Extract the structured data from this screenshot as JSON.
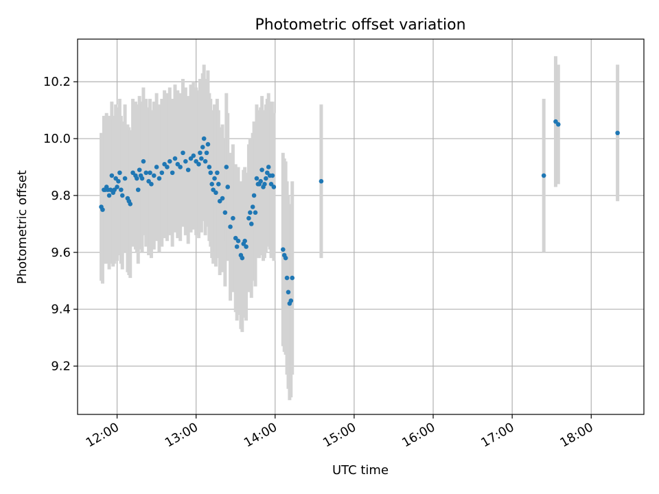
{
  "chart_data": {
    "type": "scatter",
    "title": "Photometric offset variation",
    "xlabel": "UTC time",
    "ylabel": "Photometric offset",
    "x_ticks": [
      "12:00",
      "13:00",
      "14:00",
      "15:00",
      "16:00",
      "17:00",
      "18:00"
    ],
    "y_ticks": [
      "9.2",
      "9.4",
      "9.6",
      "9.8",
      "10.0",
      "10.2"
    ],
    "xlim": [
      "11:30",
      "18:40"
    ],
    "ylim": [
      9.03,
      10.35
    ],
    "grid": true,
    "colors": {
      "point": "#1f77b4",
      "errorbar": "#d3d3d3",
      "grid": "#b0b0b0"
    },
    "series": [
      {
        "x": [
          "11:48",
          "11:49",
          "11:50",
          "11:51",
          "11:52",
          "11:53",
          "11:54",
          "11:55",
          "11:56",
          "11:57",
          "11:58",
          "11:59",
          "12:00",
          "12:01",
          "12:02",
          "12:03",
          "12:04",
          "12:06",
          "12:08",
          "12:09",
          "12:10",
          "12:12",
          "12:14",
          "12:15",
          "12:16",
          "12:17",
          "12:18",
          "12:19",
          "12:20",
          "12:22",
          "12:24",
          "12:25",
          "12:26",
          "12:28",
          "12:30",
          "12:32",
          "12:34",
          "12:36",
          "12:38",
          "12:40",
          "12:42",
          "12:44",
          "12:46",
          "12:48",
          "12:50",
          "12:52",
          "12:54",
          "12:56",
          "12:58",
          "13:00",
          "13:02",
          "13:03",
          "13:04",
          "13:05",
          "13:06",
          "13:07",
          "13:08",
          "13:09",
          "13:10",
          "13:11",
          "13:12",
          "13:13",
          "13:14",
          "13:15",
          "13:16",
          "13:17",
          "13:18",
          "13:20",
          "13:22",
          "13:23",
          "13:24",
          "13:26",
          "13:28",
          "13:30",
          "13:31",
          "13:32",
          "13:34",
          "13:35",
          "13:36",
          "13:37",
          "13:38",
          "13:40",
          "13:41",
          "13:42",
          "13:43",
          "13:44",
          "13:45",
          "13:46",
          "13:47",
          "13:48",
          "13:49",
          "13:50",
          "13:51",
          "13:52",
          "13:53",
          "13:54",
          "13:55",
          "13:56",
          "13:57",
          "13:58",
          "13:59",
          "14:06",
          "14:07",
          "14:08",
          "14:09",
          "14:10",
          "14:11",
          "14:12",
          "14:13",
          "14:35",
          "17:24",
          "17:33",
          "17:35",
          "18:20"
        ],
        "y": [
          9.76,
          9.75,
          9.82,
          9.82,
          9.83,
          9.82,
          9.8,
          9.82,
          9.87,
          9.81,
          9.82,
          9.86,
          9.83,
          9.85,
          9.88,
          9.82,
          9.8,
          9.86,
          9.79,
          9.78,
          9.77,
          9.88,
          9.87,
          9.86,
          9.82,
          9.89,
          9.87,
          9.86,
          9.92,
          9.88,
          9.85,
          9.88,
          9.84,
          9.87,
          9.9,
          9.86,
          9.88,
          9.91,
          9.9,
          9.92,
          9.88,
          9.93,
          9.91,
          9.9,
          9.95,
          9.92,
          9.89,
          9.93,
          9.94,
          9.92,
          9.91,
          9.95,
          9.93,
          9.97,
          10.0,
          9.92,
          9.95,
          9.98,
          9.9,
          9.88,
          9.84,
          9.82,
          9.86,
          9.81,
          9.88,
          9.84,
          9.78,
          9.79,
          9.74,
          9.9,
          9.83,
          9.69,
          9.72,
          9.65,
          9.62,
          9.64,
          9.59,
          9.58,
          9.63,
          9.64,
          9.62,
          9.72,
          9.74,
          9.7,
          9.76,
          9.8,
          9.74,
          9.86,
          9.84,
          9.84,
          9.85,
          9.89,
          9.83,
          9.84,
          9.86,
          9.88,
          9.9,
          9.87,
          9.84,
          9.87,
          9.83,
          9.61,
          9.59,
          9.58,
          9.51,
          9.46,
          9.42,
          9.43,
          9.51,
          9.85,
          9.87,
          10.06,
          10.05,
          10.02
        ],
        "yerr": [
          0.26,
          0.26,
          0.26,
          0.26,
          0.26,
          0.26,
          0.26,
          0.26,
          0.26,
          0.26,
          0.26,
          0.26,
          0.26,
          0.26,
          0.26,
          0.26,
          0.26,
          0.26,
          0.26,
          0.26,
          0.26,
          0.26,
          0.26,
          0.26,
          0.26,
          0.26,
          0.26,
          0.26,
          0.26,
          0.26,
          0.26,
          0.26,
          0.26,
          0.26,
          0.26,
          0.26,
          0.26,
          0.26,
          0.26,
          0.26,
          0.26,
          0.26,
          0.26,
          0.26,
          0.26,
          0.26,
          0.26,
          0.26,
          0.26,
          0.26,
          0.26,
          0.26,
          0.26,
          0.26,
          0.26,
          0.26,
          0.26,
          0.26,
          0.26,
          0.26,
          0.26,
          0.26,
          0.26,
          0.26,
          0.26,
          0.26,
          0.26,
          0.26,
          0.26,
          0.26,
          0.26,
          0.26,
          0.26,
          0.26,
          0.26,
          0.26,
          0.26,
          0.26,
          0.26,
          0.26,
          0.26,
          0.26,
          0.26,
          0.26,
          0.26,
          0.26,
          0.26,
          0.26,
          0.26,
          0.26,
          0.26,
          0.26,
          0.26,
          0.26,
          0.26,
          0.26,
          0.26,
          0.26,
          0.26,
          0.26,
          0.26,
          0.34,
          0.34,
          0.34,
          0.34,
          0.34,
          0.34,
          0.34,
          0.34,
          0.27,
          0.27,
          0.23,
          0.21,
          0.24
        ]
      }
    ]
  }
}
